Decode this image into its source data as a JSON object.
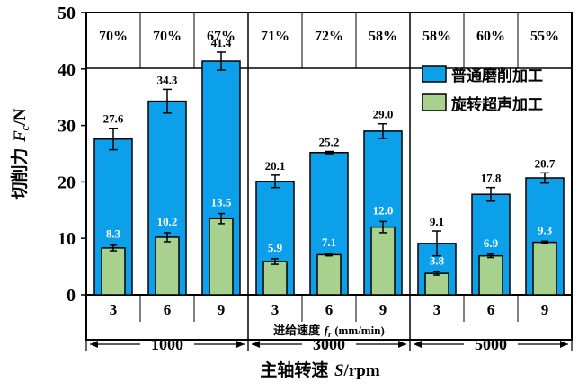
{
  "chart_data": {
    "type": "bar",
    "ylabel_prefix": "切削力 ",
    "ylabel_var": "F",
    "ylabel_sub": "c",
    "ylabel_unit": "/N",
    "ylim": [
      0,
      50
    ],
    "yticks": [
      0,
      10,
      20,
      30,
      40,
      50
    ],
    "subxlabel_text": "进给速度 ",
    "subxlabel_var": "f",
    "subxlabel_sub": "r",
    "subxlabel_unit": " (mm/min)",
    "xlabel_text": "主轴转速 ",
    "xlabel_var": "S",
    "xlabel_unit": "/rpm",
    "legend_placement": "top-right",
    "series": [
      {
        "name": "普通磨削加工",
        "color": "#0ca0ea"
      },
      {
        "name": "旋转超声加工",
        "color": "#a9d18e"
      }
    ],
    "groups": [
      {
        "label": "1000",
        "feeds": [
          "3",
          "6",
          "9"
        ],
        "conventional": [
          27.6,
          34.3,
          41.4
        ],
        "conventional_err": [
          1.9,
          2.1,
          1.6
        ],
        "ultrasonic": [
          8.3,
          10.2,
          13.5
        ],
        "ultrasonic_err": [
          0.5,
          0.8,
          0.9
        ],
        "reduction": [
          "70%",
          "70%",
          "67%"
        ]
      },
      {
        "label": "3000",
        "feeds": [
          "3",
          "6",
          "9"
        ],
        "conventional": [
          20.1,
          25.2,
          29.0
        ],
        "conventional_err": [
          1.1,
          0.2,
          1.3
        ],
        "ultrasonic": [
          5.9,
          7.1,
          12.0
        ],
        "ultrasonic_err": [
          0.5,
          0.2,
          1.0
        ],
        "reduction": [
          "71%",
          "72%",
          "58%"
        ]
      },
      {
        "label": "5000",
        "feeds": [
          "3",
          "6",
          "9"
        ],
        "conventional": [
          9.1,
          17.8,
          20.7
        ],
        "conventional_err": [
          2.2,
          1.2,
          0.9
        ],
        "ultrasonic": [
          3.8,
          6.9,
          9.3
        ],
        "ultrasonic_err": [
          0.3,
          0.3,
          0.2
        ],
        "reduction": [
          "58%",
          "60%",
          "55%"
        ]
      }
    ]
  }
}
